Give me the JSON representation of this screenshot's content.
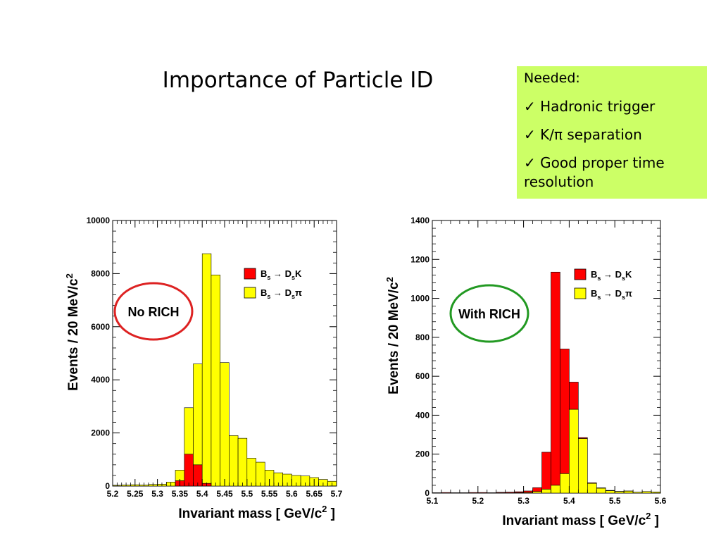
{
  "title": "Importance of Particle ID",
  "needed": {
    "heading": "Needed:",
    "items": [
      "✓ Hadronic trigger",
      "✓ K/π separation",
      "✓ Good proper time resolution"
    ]
  },
  "colors": {
    "signal": "#ff0000",
    "background": "#ffff00",
    "no_rich_circle": "#dd2222",
    "with_rich_circle": "#229922",
    "needed_box": "#ccff66"
  },
  "chart_data": [
    {
      "type": "bar",
      "label": "No RICH",
      "xlabel": "Invariant mass",
      "xlabel_unit": "GeV/c",
      "ylabel": "Events  /  20 MeV/c",
      "xlim": [
        5.2,
        5.7
      ],
      "ylim": [
        0,
        10000
      ],
      "xticks": [
        "5.2",
        "5.25",
        "5.3",
        "5.35",
        "5.4",
        "5.45",
        "5.5",
        "5.55",
        "5.6",
        "5.65",
        "5.7"
      ],
      "yticks": [
        "0",
        "2000",
        "4000",
        "6000",
        "8000",
        "10000"
      ],
      "bin_edges": [
        5.2,
        5.22,
        5.24,
        5.26,
        5.28,
        5.3,
        5.32,
        5.34,
        5.36,
        5.38,
        5.4,
        5.42,
        5.44,
        5.46,
        5.48,
        5.5,
        5.52,
        5.54,
        5.56,
        5.58,
        5.6,
        5.62,
        5.64,
        5.66,
        5.68,
        5.7
      ],
      "series": [
        {
          "name": "Bs → DsK",
          "values": [
            0,
            0,
            0,
            0,
            0,
            0,
            0,
            200,
            1200,
            800,
            100,
            0,
            0,
            0,
            0,
            0,
            0,
            0,
            0,
            0,
            0,
            0,
            0,
            0,
            0
          ]
        },
        {
          "name": "Bs → Dsπ",
          "values": [
            30,
            40,
            50,
            40,
            60,
            70,
            150,
            400,
            1750,
            3800,
            8650,
            7950,
            4650,
            1900,
            1800,
            1050,
            900,
            600,
            500,
            450,
            400,
            380,
            320,
            250,
            180
          ]
        }
      ],
      "legend": [
        {
          "text": "Bs → DsK",
          "color": "#ff0000"
        },
        {
          "text": "Bs → Dsπ",
          "color": "#ffff00"
        }
      ],
      "annotation": "No RICH"
    },
    {
      "type": "bar",
      "label": "With RICH",
      "xlabel": "Invariant mass",
      "xlabel_unit": "GeV/c",
      "ylabel": "Events  /  20 MeV/c",
      "xlim": [
        5.1,
        5.6
      ],
      "ylim": [
        0,
        1400
      ],
      "xticks": [
        "5.1",
        "5.2",
        "5.3",
        "5.4",
        "5.5",
        "5.6"
      ],
      "yticks": [
        "0",
        "200",
        "400",
        "600",
        "800",
        "1000",
        "1200",
        "1400"
      ],
      "bin_edges": [
        5.1,
        5.12,
        5.14,
        5.16,
        5.18,
        5.2,
        5.22,
        5.24,
        5.26,
        5.28,
        5.3,
        5.32,
        5.34,
        5.36,
        5.38,
        5.4,
        5.42,
        5.44,
        5.46,
        5.48,
        5.5,
        5.52,
        5.54,
        5.56,
        5.58,
        5.6
      ],
      "series": [
        {
          "name": "Bs → DsK",
          "values": [
            2,
            3,
            2,
            2,
            3,
            3,
            2,
            3,
            4,
            5,
            8,
            20,
            190,
            1095,
            640,
            140,
            5,
            3,
            2,
            2,
            1,
            1,
            0,
            0,
            0
          ]
        },
        {
          "name": "Bs → Dsπ",
          "values": [
            0,
            0,
            0,
            0,
            0,
            0,
            0,
            1,
            1,
            2,
            3,
            8,
            20,
            40,
            100,
            430,
            280,
            50,
            25,
            12,
            8,
            10,
            5,
            8,
            6
          ]
        }
      ],
      "legend": [
        {
          "text": "Bs → DsK",
          "color": "#ff0000"
        },
        {
          "text": "Bs → Dsπ",
          "color": "#ffff00"
        }
      ],
      "annotation": "With RICH"
    }
  ]
}
